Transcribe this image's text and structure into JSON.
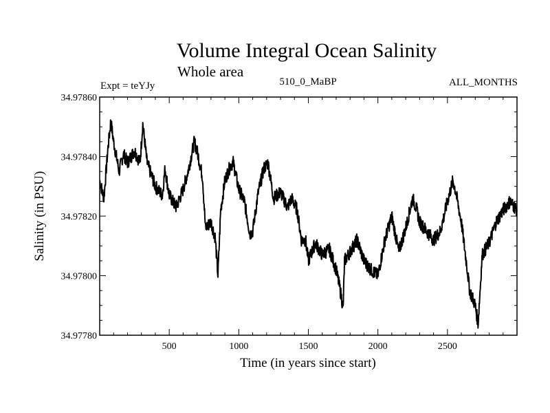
{
  "chart_data": {
    "type": "line",
    "title": "Volume Integral Ocean Salinity",
    "subtitle": "Whole area",
    "annotations": {
      "left": "Expt = teYJy",
      "center": "510_0_MaBP",
      "right": "ALL_MONTHS"
    },
    "xlabel": "Time (in years since start)",
    "ylabel": "Salinity (in PSU)",
    "xlim": [
      0,
      3000
    ],
    "ylim": [
      34.9778,
      34.9786
    ],
    "xticks_labeled": [
      500,
      1000,
      1500,
      2000,
      2500
    ],
    "xticks_labels": [
      "500",
      "1000",
      "1500",
      "2000",
      "2500"
    ],
    "yticks_labeled": [
      34.9778,
      34.978,
      34.9782,
      34.9784,
      34.9786
    ],
    "yticks_labels": [
      "34.97780",
      "34.97800",
      "34.97820",
      "34.97840",
      "34.97860"
    ],
    "line_color": "#000000",
    "series": [
      {
        "name": "Volume Integral Ocean Salinity",
        "x": [
          0,
          30,
          60,
          80,
          100,
          140,
          170,
          200,
          250,
          290,
          310,
          340,
          400,
          450,
          470,
          500,
          550,
          600,
          640,
          680,
          700,
          740,
          760,
          800,
          830,
          850,
          870,
          900,
          940,
          960,
          1000,
          1040,
          1080,
          1100,
          1140,
          1180,
          1210,
          1250,
          1300,
          1350,
          1380,
          1420,
          1450,
          1480,
          1500,
          1550,
          1600,
          1650,
          1700,
          1730,
          1750,
          1760,
          1800,
          1850,
          1900,
          1950,
          2000,
          2050,
          2100,
          2150,
          2200,
          2250,
          2280,
          2300,
          2350,
          2400,
          2450,
          2500,
          2540,
          2560,
          2600,
          2640,
          2660,
          2700,
          2720,
          2750,
          2800,
          2850,
          2900,
          2950,
          3000
        ],
        "y": [
          34.97832,
          34.97826,
          34.97843,
          34.97852,
          34.97845,
          34.97835,
          34.97841,
          34.97838,
          34.97842,
          34.97838,
          34.97851,
          34.97838,
          34.9783,
          34.97827,
          34.97836,
          34.97827,
          34.97823,
          34.97829,
          34.97836,
          34.97845,
          34.97842,
          34.97833,
          34.97816,
          34.97818,
          34.97813,
          34.978,
          34.97822,
          34.97832,
          34.97837,
          34.97838,
          34.97829,
          34.97825,
          34.97814,
          34.97815,
          34.97828,
          34.97836,
          34.97838,
          34.97826,
          34.97828,
          34.97823,
          34.97826,
          34.97822,
          34.97812,
          34.97812,
          34.97805,
          34.97811,
          34.97807,
          34.97809,
          34.97802,
          34.97795,
          34.97789,
          34.97805,
          34.97808,
          34.97812,
          34.97805,
          34.97802,
          34.978,
          34.97812,
          34.9782,
          34.97808,
          34.97816,
          34.97826,
          34.97822,
          34.97818,
          34.97815,
          34.97812,
          34.97815,
          34.97825,
          34.97832,
          34.97828,
          34.97818,
          34.97803,
          34.97795,
          34.9779,
          34.97784,
          34.97807,
          34.97811,
          34.97818,
          34.97822,
          34.97825,
          34.97822
        ]
      }
    ]
  }
}
